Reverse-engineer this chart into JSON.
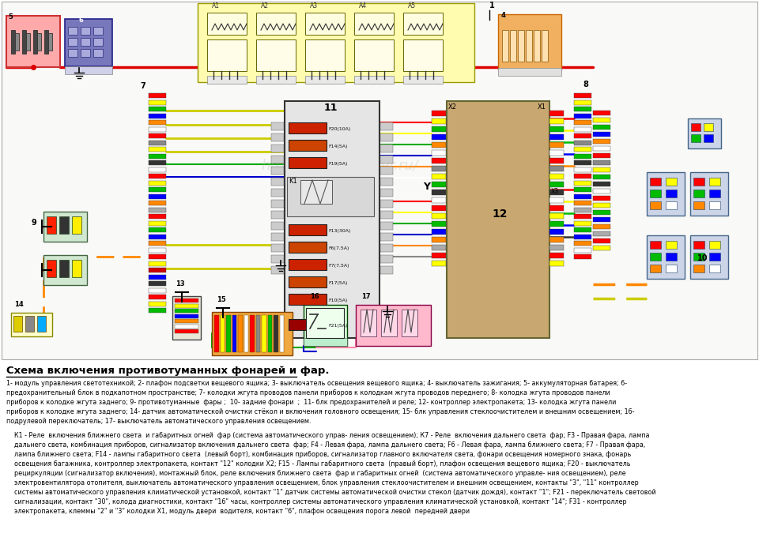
{
  "bg_color": "#ffffff",
  "title": "Схема включения противотуманных фонарей и фар.",
  "desc1": "1- модуль управления светотехникой; 2- плафон подсветки вещевого ящика; 3- выключатель освещения вещевого ящика; 4- выключатель зажигания; 5- аккумуляторная батарея; 6-",
  "desc2": "предохранительный блок в подкапотном пространстве; 7- колодки жгута проводов панели приборов к колодкам жгута проводов переднего; 8- колодка жгута проводов панели",
  "desc3": "приборов к колодке жгута заднего; 9- противотуманные  фары ;  10- задние фонари  ;  11- блк предохранителей и реле; 12- контроллер электропакета; 13- колодка жгута панели",
  "desc4": "приборов к колодке жгута заднего; 14- датчик автоматической очистки стёкол и включения головного освещения; 15- блк управления стеклоочистителем и внешним освещением; 16-",
  "desc5": "подрулевой переключатель; 17- выключатель автоматического управления освещением.",
  "k1": "К1 - Реле  включения ближнего света  и габаритных огней  фар (система автоматического управ- ления освещением); К7 - Реле  включения дальнего света  фар; F3 - Правая фара, лампа",
  "k2": "дальнего света, комбинация приборов, сигнализатор включения дальнего света  фар; F4 - Левая фара, лампа дальнего света; F6 - Левая фара, лампа ближнего света; F7 - Правая фара,",
  "k3": "лампа ближнего света; F14 - лампы габаритного света  (левый борт), комбинация приборов, сигнализатор главного включателя света, фонари освещения номерного знака, фонарь",
  "k4": "освещения багажника, контроллер электропакета, контакт \"12\" колодки Х2; F15 - Лампы габаритного света  (правый борт), плафон освещения вещевого ящика; F20 - выключатель",
  "k5": "рециркуляции (сигнализатор включения), монтажный блок, реле включения ближнего света  фар и габаритных огней  (система автоматического управле- ния освещением), реле",
  "k6": "электровентилятора отопителя, выключатель автоматического управления освещением, блок управления стеклоочистителем и внешним освещением, контакты \"3\", \"11\" контроллер",
  "k7": "системы автоматического управления климатической установкой, контакт \"1\" датчик системы автоматической очистки стекол (датчик дождя), контакт \"1\"; F21 - переключатель световой",
  "k8": "сигнализации, контакт \"30\", колода диагностики, контакт \"16\" часы, контроллер системы автоматического управления климатической установкой, контакт \"14\"; F31 - контроллер",
  "k9": "электропакета, клеммы \"2\" и \"3\" колодки Х1, модуль двери  водителя, контакт \"6\", плафон освещения порога левой  передней двери"
}
